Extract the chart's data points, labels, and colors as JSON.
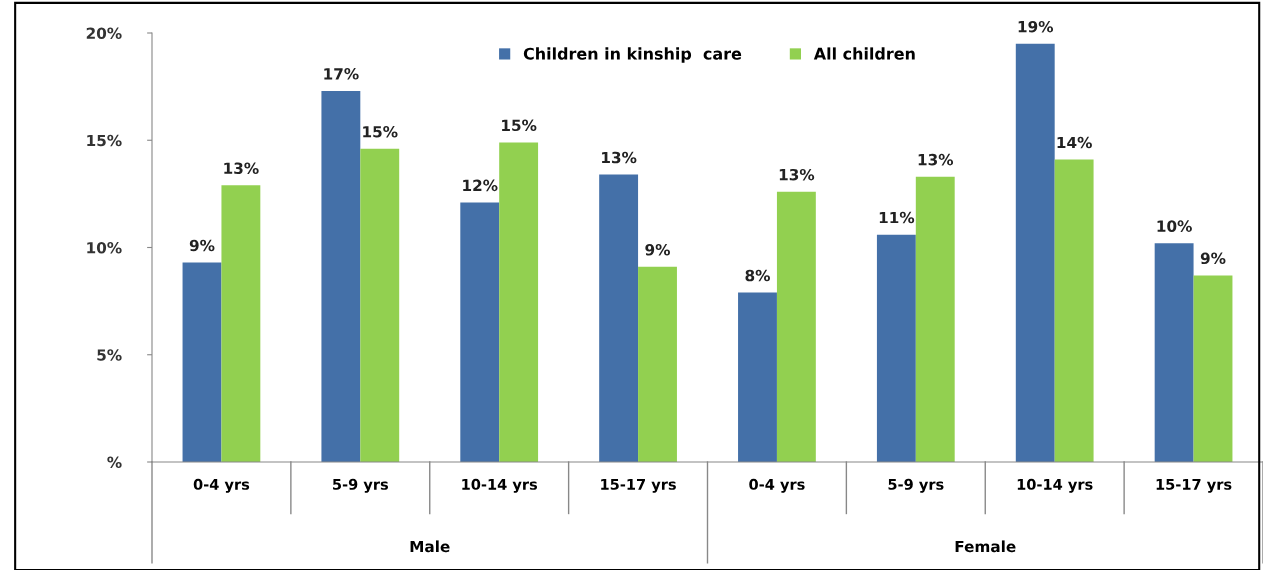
{
  "chart_data": {
    "type": "bar",
    "categories": [
      "0-4 yrs",
      "5-9 yrs",
      "10-14 yrs",
      "15-17 yrs",
      "0-4 yrs",
      "5-9 yrs",
      "10-14 yrs",
      "15-17 yrs"
    ],
    "series": [
      {
        "name": "Children in kinship  care",
        "color": "#4470a8",
        "values": [
          9.3,
          17.3,
          12.1,
          13.4,
          7.9,
          10.6,
          19.5,
          10.2
        ],
        "value_labels": [
          "9%",
          "17%",
          "12%",
          "13%",
          "8%",
          "11%",
          "19%",
          "10%"
        ]
      },
      {
        "name": "All children",
        "color": "#92d050",
        "values": [
          12.9,
          14.6,
          14.9,
          9.1,
          12.6,
          13.3,
          14.1,
          8.7
        ],
        "value_labels": [
          "13%",
          "15%",
          "15%",
          "9%",
          "13%",
          "13%",
          "14%",
          "9%"
        ]
      }
    ],
    "ylim": [
      0,
      20
    ],
    "yticks": [
      {
        "value": 0,
        "label": "%"
      },
      {
        "value": 5,
        "label": "5%"
      },
      {
        "value": 10,
        "label": "10%"
      },
      {
        "value": 15,
        "label": "15%"
      },
      {
        "value": 20,
        "label": "20%"
      }
    ],
    "annotations": [
      "Male",
      "Female"
    ],
    "legend": "top",
    "grid": false
  }
}
